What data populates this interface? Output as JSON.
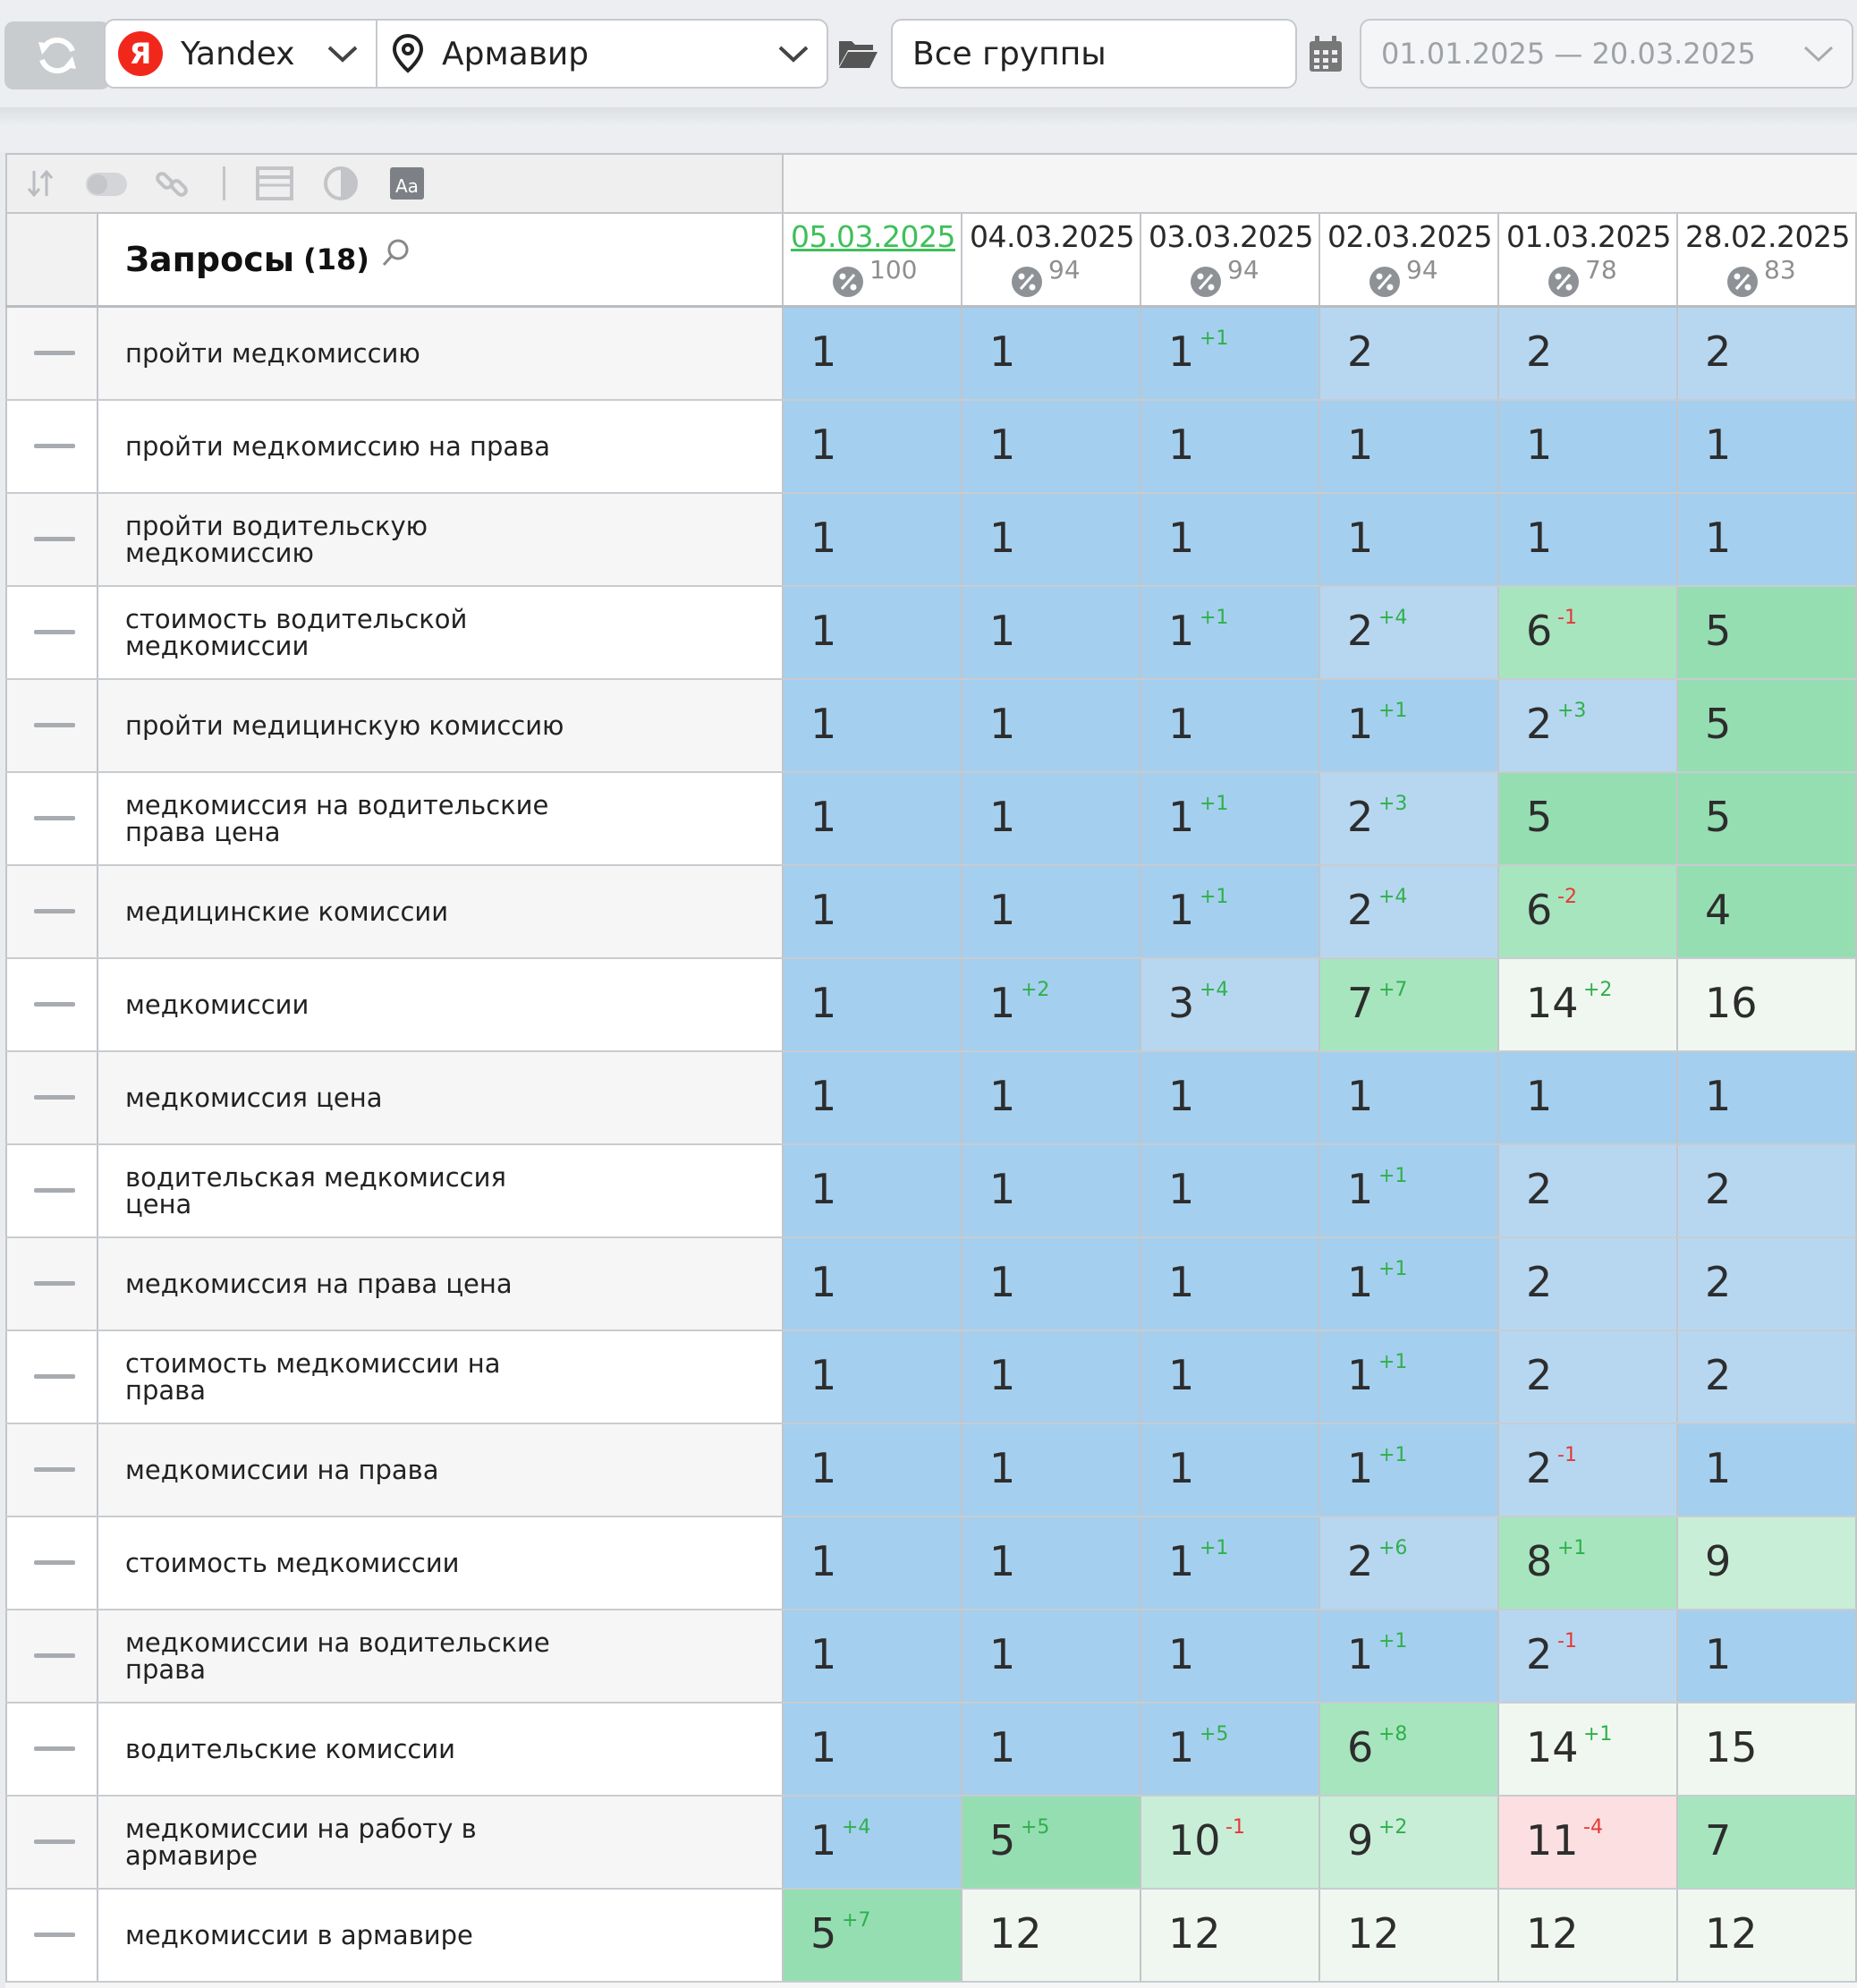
{
  "toolbar": {
    "engine": "Yandex",
    "engine_logo": "Я",
    "region": "Армавир",
    "groups": "Все группы",
    "date_range": "01.01.2025 — 20.03.2025"
  },
  "table": {
    "title": "Запросы",
    "count": "(18)",
    "dates": [
      {
        "date": "05.03.2025",
        "pct": "100",
        "active": true
      },
      {
        "date": "04.03.2025",
        "pct": "94",
        "active": false
      },
      {
        "date": "03.03.2025",
        "pct": "94",
        "active": false
      },
      {
        "date": "02.03.2025",
        "pct": "94",
        "active": false
      },
      {
        "date": "01.03.2025",
        "pct": "78",
        "active": false
      },
      {
        "date": "28.02.2025",
        "pct": "83",
        "active": false
      }
    ],
    "rows": [
      {
        "query": "пройти медкомиссию",
        "cells": [
          {
            "p": "1",
            "d": ""
          },
          {
            "p": "1",
            "d": ""
          },
          {
            "p": "1",
            "d": "+1"
          },
          {
            "p": "2",
            "d": ""
          },
          {
            "p": "2",
            "d": ""
          },
          {
            "p": "2",
            "d": ""
          }
        ]
      },
      {
        "query": "пройти медкомиссию на права",
        "cells": [
          {
            "p": "1",
            "d": ""
          },
          {
            "p": "1",
            "d": ""
          },
          {
            "p": "1",
            "d": ""
          },
          {
            "p": "1",
            "d": ""
          },
          {
            "p": "1",
            "d": ""
          },
          {
            "p": "1",
            "d": ""
          }
        ]
      },
      {
        "query": "пройти водительскую медкомиссию",
        "cells": [
          {
            "p": "1",
            "d": ""
          },
          {
            "p": "1",
            "d": ""
          },
          {
            "p": "1",
            "d": ""
          },
          {
            "p": "1",
            "d": ""
          },
          {
            "p": "1",
            "d": ""
          },
          {
            "p": "1",
            "d": ""
          }
        ]
      },
      {
        "query": "стоимость водительской медкомиссии",
        "cells": [
          {
            "p": "1",
            "d": ""
          },
          {
            "p": "1",
            "d": ""
          },
          {
            "p": "1",
            "d": "+1"
          },
          {
            "p": "2",
            "d": "+4"
          },
          {
            "p": "6",
            "d": "-1"
          },
          {
            "p": "5",
            "d": ""
          }
        ]
      },
      {
        "query": "пройти медицинскую комиссию",
        "cells": [
          {
            "p": "1",
            "d": ""
          },
          {
            "p": "1",
            "d": ""
          },
          {
            "p": "1",
            "d": ""
          },
          {
            "p": "1",
            "d": "+1"
          },
          {
            "p": "2",
            "d": "+3"
          },
          {
            "p": "5",
            "d": ""
          }
        ]
      },
      {
        "query": "медкомиссия на водительские права цена",
        "cells": [
          {
            "p": "1",
            "d": ""
          },
          {
            "p": "1",
            "d": ""
          },
          {
            "p": "1",
            "d": "+1"
          },
          {
            "p": "2",
            "d": "+3"
          },
          {
            "p": "5",
            "d": ""
          },
          {
            "p": "5",
            "d": ""
          }
        ]
      },
      {
        "query": "медицинские комиссии",
        "cells": [
          {
            "p": "1",
            "d": ""
          },
          {
            "p": "1",
            "d": ""
          },
          {
            "p": "1",
            "d": "+1"
          },
          {
            "p": "2",
            "d": "+4"
          },
          {
            "p": "6",
            "d": "-2"
          },
          {
            "p": "4",
            "d": ""
          }
        ]
      },
      {
        "query": "медкомиссии",
        "cells": [
          {
            "p": "1",
            "d": ""
          },
          {
            "p": "1",
            "d": "+2"
          },
          {
            "p": "3",
            "d": "+4"
          },
          {
            "p": "7",
            "d": "+7"
          },
          {
            "p": "14",
            "d": "+2"
          },
          {
            "p": "16",
            "d": ""
          }
        ]
      },
      {
        "query": "медкомиссия цена",
        "cells": [
          {
            "p": "1",
            "d": ""
          },
          {
            "p": "1",
            "d": ""
          },
          {
            "p": "1",
            "d": ""
          },
          {
            "p": "1",
            "d": ""
          },
          {
            "p": "1",
            "d": ""
          },
          {
            "p": "1",
            "d": ""
          }
        ]
      },
      {
        "query": "водительская медкомиссия цена",
        "cells": [
          {
            "p": "1",
            "d": ""
          },
          {
            "p": "1",
            "d": ""
          },
          {
            "p": "1",
            "d": ""
          },
          {
            "p": "1",
            "d": "+1"
          },
          {
            "p": "2",
            "d": ""
          },
          {
            "p": "2",
            "d": ""
          }
        ]
      },
      {
        "query": "медкомиссия на права цена",
        "cells": [
          {
            "p": "1",
            "d": ""
          },
          {
            "p": "1",
            "d": ""
          },
          {
            "p": "1",
            "d": ""
          },
          {
            "p": "1",
            "d": "+1"
          },
          {
            "p": "2",
            "d": ""
          },
          {
            "p": "2",
            "d": ""
          }
        ]
      },
      {
        "query": "стоимость медкомиссии на права",
        "cells": [
          {
            "p": "1",
            "d": ""
          },
          {
            "p": "1",
            "d": ""
          },
          {
            "p": "1",
            "d": ""
          },
          {
            "p": "1",
            "d": "+1"
          },
          {
            "p": "2",
            "d": ""
          },
          {
            "p": "2",
            "d": ""
          }
        ]
      },
      {
        "query": "медкомиссии на права",
        "cells": [
          {
            "p": "1",
            "d": ""
          },
          {
            "p": "1",
            "d": ""
          },
          {
            "p": "1",
            "d": ""
          },
          {
            "p": "1",
            "d": "+1"
          },
          {
            "p": "2",
            "d": "-1"
          },
          {
            "p": "1",
            "d": ""
          }
        ]
      },
      {
        "query": "стоимость медкомиссии",
        "cells": [
          {
            "p": "1",
            "d": ""
          },
          {
            "p": "1",
            "d": ""
          },
          {
            "p": "1",
            "d": "+1"
          },
          {
            "p": "2",
            "d": "+6"
          },
          {
            "p": "8",
            "d": "+1"
          },
          {
            "p": "9",
            "d": ""
          }
        ]
      },
      {
        "query": "медкомиссии на водительские права",
        "cells": [
          {
            "p": "1",
            "d": ""
          },
          {
            "p": "1",
            "d": ""
          },
          {
            "p": "1",
            "d": ""
          },
          {
            "p": "1",
            "d": "+1"
          },
          {
            "p": "2",
            "d": "-1"
          },
          {
            "p": "1",
            "d": ""
          }
        ]
      },
      {
        "query": "водительские комиссии",
        "cells": [
          {
            "p": "1",
            "d": ""
          },
          {
            "p": "1",
            "d": ""
          },
          {
            "p": "1",
            "d": "+5"
          },
          {
            "p": "6",
            "d": "+8"
          },
          {
            "p": "14",
            "d": "+1"
          },
          {
            "p": "15",
            "d": ""
          }
        ]
      },
      {
        "query": "медкомиссии на работу в армавире",
        "cells": [
          {
            "p": "1",
            "d": "+4"
          },
          {
            "p": "5",
            "d": "+5"
          },
          {
            "p": "10",
            "d": "-1"
          },
          {
            "p": "9",
            "d": "+2"
          },
          {
            "p": "11",
            "d": "-4"
          },
          {
            "p": "7",
            "d": ""
          }
        ]
      },
      {
        "query": "медкомиссии в армавире",
        "cells": [
          {
            "p": "5",
            "d": "+7"
          },
          {
            "p": "12",
            "d": ""
          },
          {
            "p": "12",
            "d": ""
          },
          {
            "p": "12",
            "d": ""
          },
          {
            "p": "12",
            "d": ""
          },
          {
            "p": "12",
            "d": ""
          }
        ]
      }
    ]
  },
  "colors": {
    "pos_1": "#a5cfee",
    "pos_2_3": "#b7d7f1",
    "pos_4_5": "#95deb2",
    "pos_6_8": "#a7e5bf",
    "pos_9_10": "#c8eed7",
    "pos_11_drop": "#fbdfe1",
    "pos_11_20": "#f0f7f0",
    "pos_other": "#ffffff",
    "accent_green": "#3fbf5a",
    "down_red": "#e53935"
  }
}
